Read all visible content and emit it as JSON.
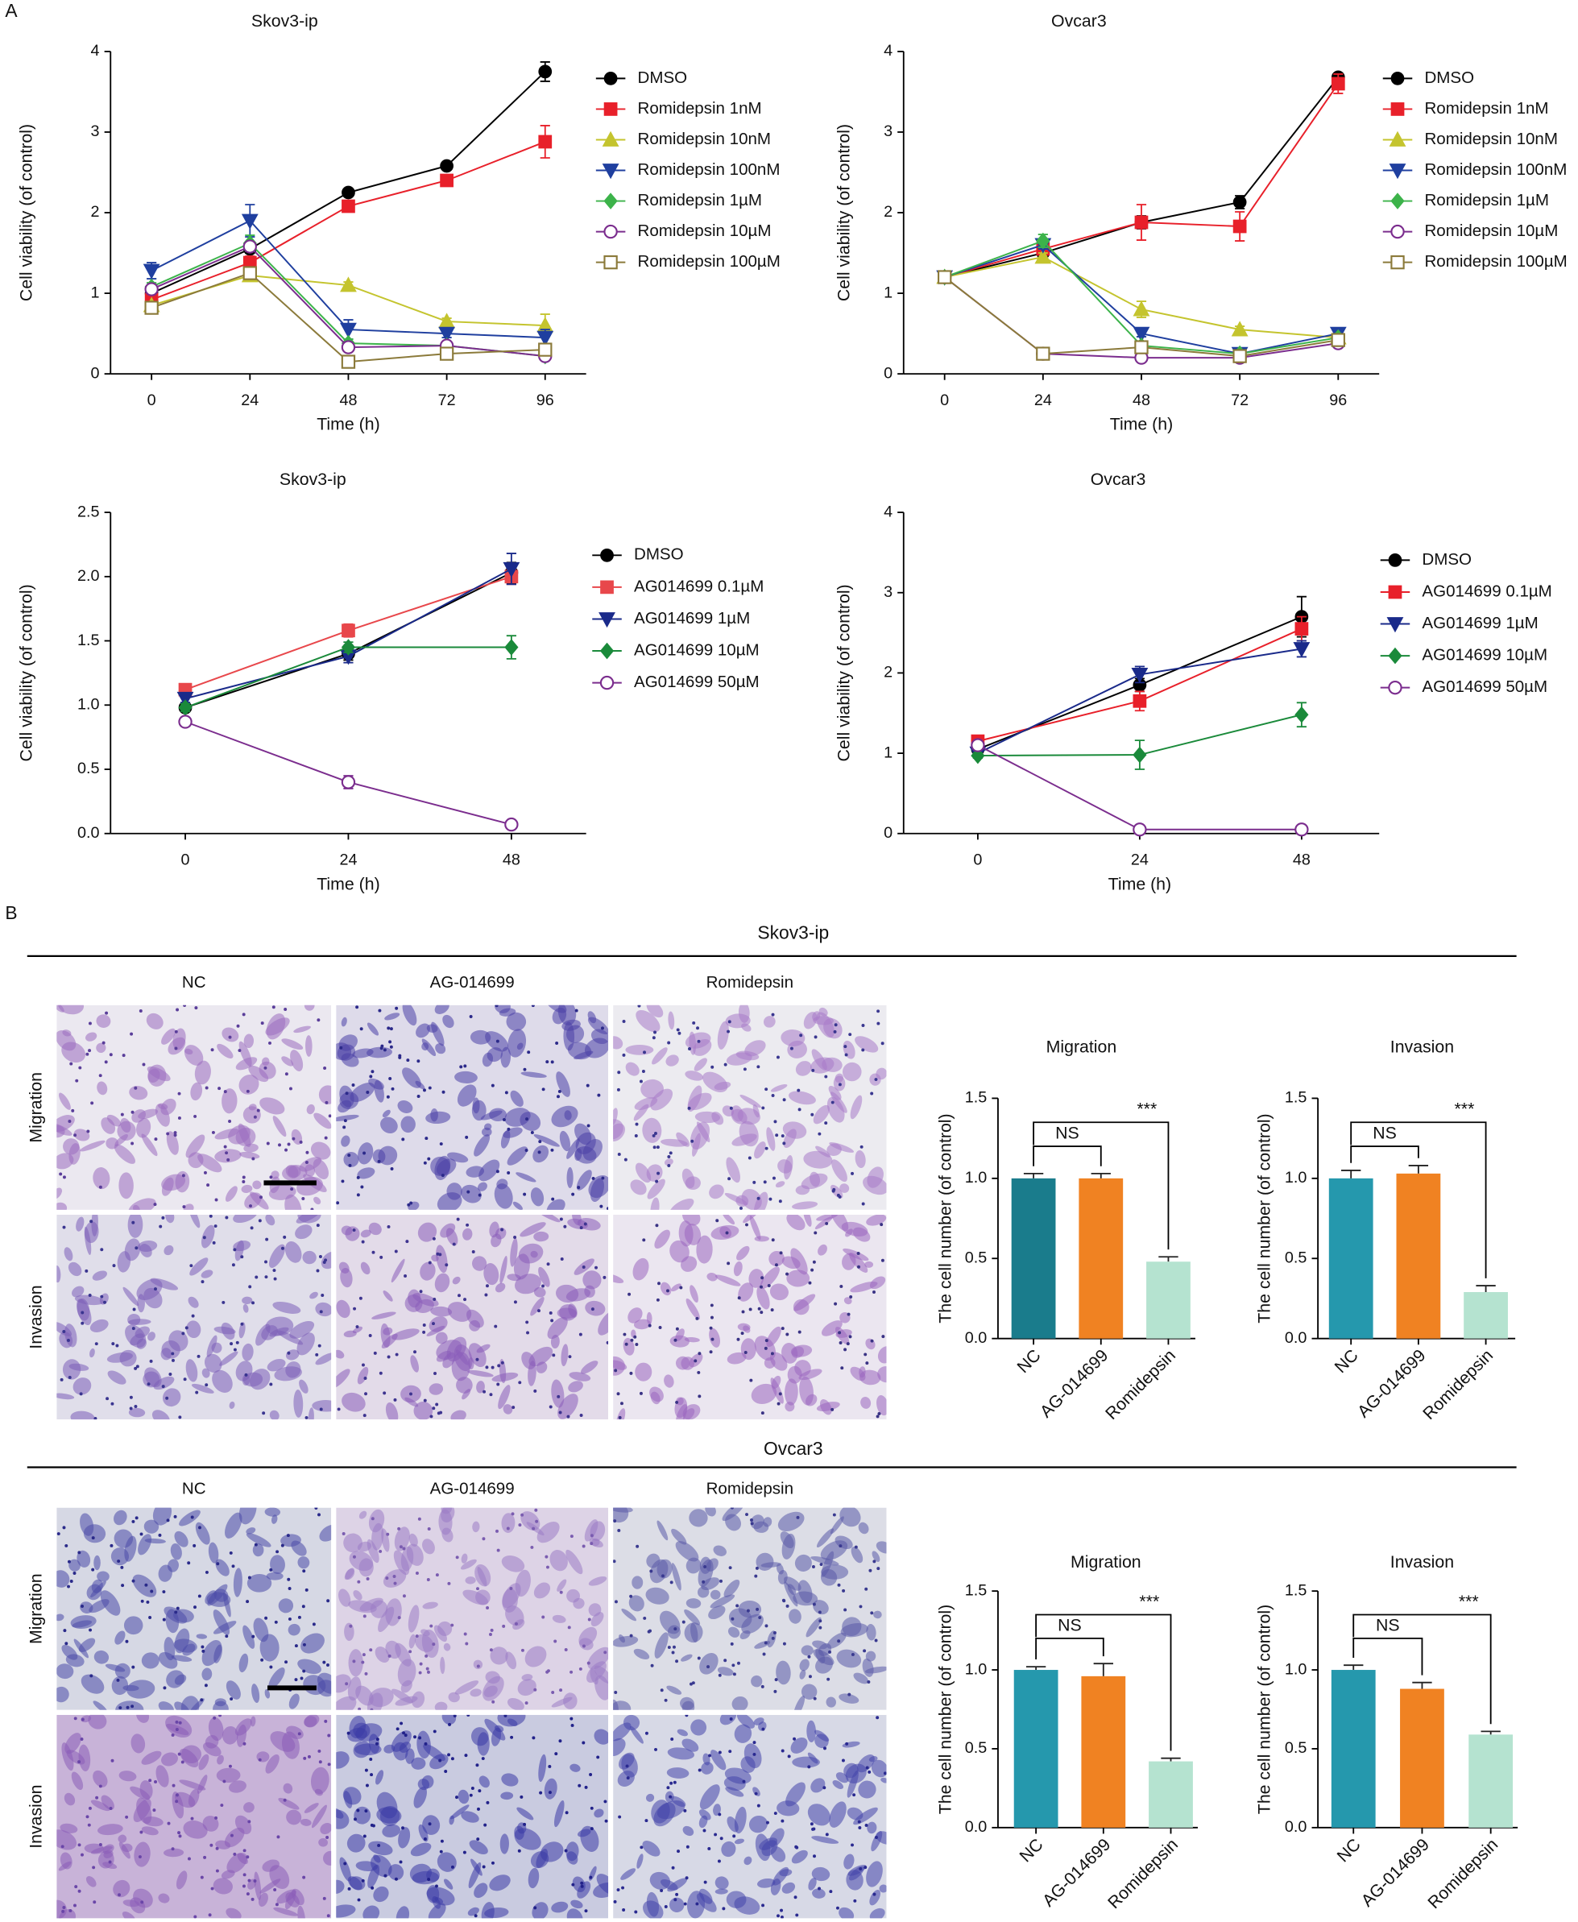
{
  "panel_labels": [
    "A",
    "B"
  ],
  "chart_data": [
    {
      "type": "line",
      "title": "Skov3-ip",
      "xlabel": "Time (h)",
      "ylabel": "Cell viability (of control)",
      "x": [
        0,
        24,
        48,
        72,
        96
      ],
      "xlim": [
        -10,
        106
      ],
      "xticks": [
        0,
        24,
        48,
        72,
        96
      ],
      "ylim": [
        0,
        4
      ],
      "yticks": [
        0,
        1,
        2,
        3,
        4
      ],
      "series": [
        {
          "name": "DMSO",
          "color": "#000000",
          "marker": "circle",
          "values": [
            1.0,
            1.55,
            2.25,
            2.58,
            3.75
          ],
          "errors": [
            0.05,
            0.05,
            0.04,
            0.04,
            0.12
          ]
        },
        {
          "name": "Romidepsin 1nM",
          "color": "#e8202a",
          "marker": "square",
          "values": [
            0.92,
            1.38,
            2.08,
            2.4,
            2.88
          ],
          "errors": [
            0.05,
            0.08,
            0.05,
            0.05,
            0.2
          ]
        },
        {
          "name": "Romidepsin 10nM",
          "color": "#c4c42e",
          "marker": "triangle-up",
          "values": [
            0.85,
            1.22,
            1.1,
            0.65,
            0.6
          ],
          "errors": [
            0.04,
            0.05,
            0.04,
            0.04,
            0.14
          ]
        },
        {
          "name": "Romidepsin 100nM",
          "color": "#1f3f9f",
          "marker": "triangle-down",
          "values": [
            1.28,
            1.9,
            0.55,
            0.5,
            0.45
          ],
          "errors": [
            0.1,
            0.2,
            0.12,
            0.05,
            0.1
          ]
        },
        {
          "name": "Romidepsin 1µM",
          "color": "#3cb34a",
          "marker": "diamond",
          "values": [
            1.08,
            1.62,
            0.38,
            0.35,
            0.22
          ],
          "errors": [
            0.05,
            0.1,
            0.05,
            0.05,
            0.05
          ]
        },
        {
          "name": "Romidepsin 10µM",
          "color": "#7b2d8e",
          "marker": "circle-open",
          "values": [
            1.05,
            1.58,
            0.33,
            0.35,
            0.22
          ],
          "errors": [
            0.05,
            0.05,
            0.05,
            0.05,
            0.05
          ]
        },
        {
          "name": "Romidepsin 100µM",
          "color": "#8b7a3a",
          "marker": "square-open",
          "values": [
            0.82,
            1.25,
            0.15,
            0.25,
            0.3
          ],
          "errors": [
            0.05,
            0.05,
            0.04,
            0.04,
            0.05
          ]
        }
      ]
    },
    {
      "type": "line",
      "title": "Ovcar3",
      "xlabel": "Time (h)",
      "ylabel": "Cell viability (of control)",
      "x": [
        0,
        24,
        48,
        72,
        96
      ],
      "xlim": [
        -10,
        106
      ],
      "xticks": [
        0,
        24,
        48,
        72,
        96
      ],
      "ylim": [
        0,
        4
      ],
      "yticks": [
        0,
        1,
        2,
        3,
        4
      ],
      "series": [
        {
          "name": "DMSO",
          "color": "#000000",
          "marker": "circle",
          "values": [
            1.2,
            1.5,
            1.88,
            2.13,
            3.68
          ],
          "errors": [
            0.03,
            0.05,
            0.08,
            0.08,
            0.05
          ]
        },
        {
          "name": "Romidepsin 1nM",
          "color": "#e8202a",
          "marker": "square",
          "values": [
            1.2,
            1.55,
            1.88,
            1.83,
            3.6
          ],
          "errors": [
            0.03,
            0.05,
            0.22,
            0.18,
            0.12
          ]
        },
        {
          "name": "Romidepsin 10nM",
          "color": "#c4c42e",
          "marker": "triangle-up",
          "values": [
            1.2,
            1.45,
            0.8,
            0.55,
            0.45
          ],
          "errors": [
            0.03,
            0.05,
            0.1,
            0.04,
            0.04
          ]
        },
        {
          "name": "Romidepsin 100nM",
          "color": "#1f3f9f",
          "marker": "triangle-down",
          "values": [
            1.2,
            1.6,
            0.5,
            0.25,
            0.5
          ],
          "errors": [
            0.03,
            0.05,
            0.04,
            0.04,
            0.04
          ]
        },
        {
          "name": "Romidepsin 1µM",
          "color": "#3cb34a",
          "marker": "diamond",
          "values": [
            1.2,
            1.65,
            0.35,
            0.25,
            0.45
          ],
          "errors": [
            0.03,
            0.08,
            0.04,
            0.04,
            0.04
          ]
        },
        {
          "name": "Romidepsin 10µM",
          "color": "#7b2d8e",
          "marker": "circle-open",
          "values": [
            1.2,
            0.25,
            0.2,
            0.2,
            0.38
          ],
          "errors": [
            0.03,
            0.04,
            0.03,
            0.03,
            0.04
          ]
        },
        {
          "name": "Romidepsin 100µM",
          "color": "#8b7a3a",
          "marker": "square-open",
          "values": [
            1.2,
            0.25,
            0.33,
            0.22,
            0.42
          ],
          "errors": [
            0.03,
            0.04,
            0.04,
            0.03,
            0.04
          ]
        }
      ]
    },
    {
      "type": "line",
      "title": "Skov3-ip",
      "xlabel": "Time (h)",
      "ylabel": "Cell viability (of control)",
      "x": [
        0,
        24,
        48
      ],
      "xlim": [
        -11,
        59
      ],
      "xticks": [
        0,
        24,
        48
      ],
      "ylim": [
        0,
        2.5
      ],
      "yticks": [
        {
          "value": 0,
          "label": "0.0"
        },
        0.5,
        {
          "value": 1,
          "label": "1.0"
        },
        1.5,
        {
          "value": 2,
          "label": "2.0"
        },
        2.5
      ],
      "series": [
        {
          "name": "DMSO",
          "color": "#000000",
          "marker": "circle",
          "values": [
            0.98,
            1.4,
            2.03
          ],
          "errors": [
            0.03,
            0.05,
            0.08
          ]
        },
        {
          "name": "AG014699 0.1µM",
          "color": "#e8474b",
          "marker": "square",
          "values": [
            1.12,
            1.58,
            2.0
          ],
          "errors": [
            0.03,
            0.05,
            0.06
          ]
        },
        {
          "name": "AG014699 1µM",
          "color": "#1a2a8a",
          "marker": "triangle-down",
          "values": [
            1.05,
            1.38,
            2.06
          ],
          "errors": [
            0.03,
            0.05,
            0.12
          ]
        },
        {
          "name": "AG014699 10µM",
          "color": "#1a8a3a",
          "marker": "diamond",
          "values": [
            0.98,
            1.45,
            1.45
          ],
          "errors": [
            0.03,
            0.04,
            0.09
          ]
        },
        {
          "name": "AG014699 50µM",
          "color": "#7b2d8e",
          "marker": "circle-open",
          "values": [
            0.87,
            0.4,
            0.07
          ],
          "errors": [
            0.02,
            0.05,
            0.02
          ]
        }
      ]
    },
    {
      "type": "line",
      "title": "Ovcar3",
      "xlabel": "Time (h)",
      "ylabel": "Cell viability (of control)",
      "x": [
        0,
        24,
        48
      ],
      "xlim": [
        -11,
        59.5
      ],
      "xticks": [
        0,
        24,
        48
      ],
      "ylim": [
        0,
        4
      ],
      "yticks": [
        0,
        1,
        2,
        3,
        4
      ],
      "series": [
        {
          "name": "DMSO",
          "color": "#000000",
          "marker": "circle",
          "values": [
            1.05,
            1.85,
            2.7
          ],
          "errors": [
            0.04,
            0.08,
            0.25
          ]
        },
        {
          "name": "AG014699 0.1µM",
          "color": "#e8202a",
          "marker": "square",
          "values": [
            1.15,
            1.65,
            2.55
          ],
          "errors": [
            0.04,
            0.12,
            0.15
          ]
        },
        {
          "name": "AG014699 1µM",
          "color": "#1a2a8a",
          "marker": "triangle-down",
          "values": [
            1.0,
            1.98,
            2.3
          ],
          "errors": [
            0.04,
            0.1,
            0.1
          ]
        },
        {
          "name": "AG014699 10µM",
          "color": "#1a8a3a",
          "marker": "diamond",
          "values": [
            0.97,
            0.98,
            1.48
          ],
          "errors": [
            0.03,
            0.18,
            0.15
          ]
        },
        {
          "name": "AG014699 50µM",
          "color": "#7b2d8e",
          "marker": "circle-open",
          "values": [
            1.1,
            0.05,
            0.05
          ],
          "errors": [
            0.03,
            0.02,
            0.02
          ]
        }
      ]
    },
    {
      "type": "bar",
      "title": "Migration",
      "ylabel": "The cell number (of control)",
      "categories": [
        "NC",
        "AG-014699",
        "Romidepsin"
      ],
      "values": [
        1.0,
        1.0,
        0.48
      ],
      "errors": [
        0.03,
        0.03,
        0.03
      ],
      "colors": [
        "#1a7c8c",
        "#f08222",
        "#b5e3d0"
      ],
      "ylim": [
        0,
        1.5
      ],
      "yticks": [
        {
          "value": 0,
          "label": "0.0"
        },
        0.5,
        {
          "value": 1,
          "label": "1.0"
        },
        1.5
      ],
      "annotations": [
        "NS",
        "***"
      ]
    },
    {
      "type": "bar",
      "title": "Invasion",
      "ylabel": "The cell number (of control)",
      "categories": [
        "NC",
        "AG-014699",
        "Romidepsin"
      ],
      "values": [
        1.0,
        1.03,
        0.29
      ],
      "errors": [
        0.05,
        0.05,
        0.04
      ],
      "colors": [
        "#2598ad",
        "#f08222",
        "#b5e3d0"
      ],
      "ylim": [
        0,
        1.5
      ],
      "yticks": [
        {
          "value": 0,
          "label": "0.0"
        },
        0.5,
        {
          "value": 1,
          "label": "1.0"
        },
        1.5
      ],
      "annotations": [
        "NS",
        "***"
      ]
    },
    {
      "type": "bar",
      "title": "Migration",
      "ylabel": "The cell number (of control)",
      "categories": [
        "NC",
        "AG-014699",
        "Romidepsin"
      ],
      "values": [
        1.0,
        0.96,
        0.42
      ],
      "errors": [
        0.02,
        0.08,
        0.02
      ],
      "colors": [
        "#2598ad",
        "#f08222",
        "#b5e3d0"
      ],
      "ylim": [
        0,
        1.5
      ],
      "yticks": [
        {
          "value": 0,
          "label": "0.0"
        },
        0.5,
        {
          "value": 1,
          "label": "1.0"
        },
        1.5
      ],
      "annotations": [
        "NS",
        "***"
      ]
    },
    {
      "type": "bar",
      "title": "Invasion",
      "ylabel": "The cell number (of control)",
      "categories": [
        "NC",
        "AG-014699",
        "Romidepsin"
      ],
      "values": [
        1.0,
        0.88,
        0.59
      ],
      "errors": [
        0.03,
        0.04,
        0.02
      ],
      "colors": [
        "#2598ad",
        "#f08222",
        "#b5e3d0"
      ],
      "ylim": [
        0,
        1.5
      ],
      "yticks": [
        {
          "value": 0,
          "label": "0.0"
        },
        0.5,
        {
          "value": 1,
          "label": "1.0"
        },
        1.5
      ],
      "annotations": [
        "NS",
        "***"
      ]
    }
  ],
  "image_sections": [
    {
      "title": "Skov3-ip",
      "columns": [
        "NC",
        "AG-014699",
        "Romidepsin"
      ],
      "rows": [
        "Migration",
        "Invasion"
      ]
    },
    {
      "title": "Ovcar3",
      "columns": [
        "NC",
        "AG-014699",
        "Romidepsin"
      ],
      "rows": [
        "Migration",
        "Invasion"
      ]
    }
  ]
}
